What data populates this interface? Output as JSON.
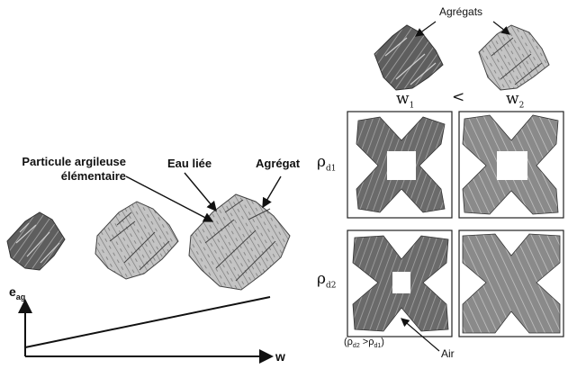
{
  "labels": {
    "particle": "Particule argileuse\nélémentaire",
    "particle_line1": "Particule argileuse",
    "particle_line2": "élémentaire",
    "bound_water": "Eau liée",
    "aggregate": "Agrégat",
    "aggregates_top": "Agrégats",
    "air": "Air"
  },
  "axes": {
    "y": "e",
    "y_sub": "ag",
    "x": "w"
  },
  "water": {
    "w1": "w",
    "w1_sub": "1",
    "compare": "<",
    "w2": "w",
    "w2_sub": "2"
  },
  "density": {
    "rho1": "ρ",
    "rho1_sub": "d1",
    "rho2": "ρ",
    "rho2_sub": "d2",
    "relation": "(ρ",
    "relation_sub1": "d2",
    "relation_mid": " >ρ",
    "relation_sub2": "d1",
    "relation_end": ")"
  },
  "colors": {
    "dark_particle": "#555555",
    "light_particle": "#b9b9b9",
    "particle_edge": "#333333",
    "hatch": "#7a7a7a"
  }
}
